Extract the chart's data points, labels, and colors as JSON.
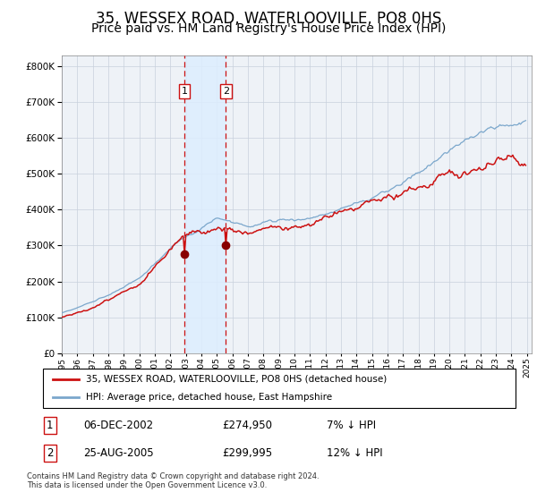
{
  "title": "35, WESSEX ROAD, WATERLOOVILLE, PO8 0HS",
  "subtitle": "Price paid vs. HM Land Registry's House Price Index (HPI)",
  "legend_line1": "35, WESSEX ROAD, WATERLOOVILLE, PO8 0HS (detached house)",
  "legend_line2": "HPI: Average price, detached house, East Hampshire",
  "footnote": "Contains HM Land Registry data © Crown copyright and database right 2024.\nThis data is licensed under the Open Government Licence v3.0.",
  "table": [
    {
      "num": "1",
      "date": "06-DEC-2002",
      "price": "£274,950",
      "hpi": "7% ↓ HPI"
    },
    {
      "num": "2",
      "date": "25-AUG-2005",
      "price": "£299,995",
      "hpi": "12% ↓ HPI"
    }
  ],
  "sale1_year": 2002.917,
  "sale1_price": 274950,
  "sale2_year": 2005.583,
  "sale2_price": 299995,
  "hpi_color": "#7ba7cc",
  "price_color": "#cc1111",
  "marker_color": "#880000",
  "shade_color": "#ddeeff",
  "vline_color": "#cc1111",
  "bg_color": "#eef2f7",
  "grid_color": "#c8d0dc",
  "ylim": [
    0,
    830000
  ],
  "yticks": [
    0,
    100000,
    200000,
    300000,
    400000,
    500000,
    600000,
    700000,
    800000
  ],
  "start_year": 1995,
  "end_year": 2025,
  "title_fontsize": 12,
  "subtitle_fontsize": 10
}
